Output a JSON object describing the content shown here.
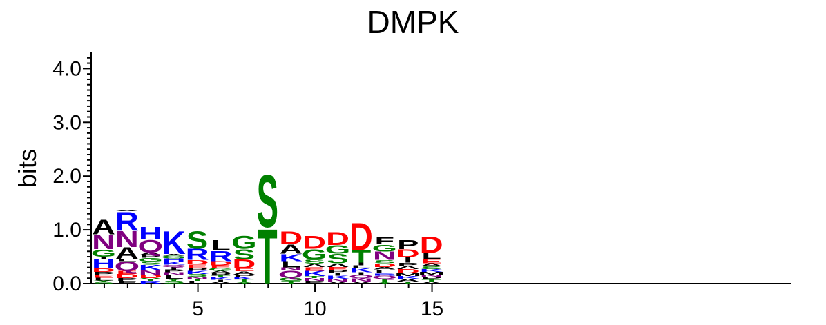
{
  "chart_data": {
    "type": "sequence-logo",
    "title": "DMPK",
    "ylabel": "bits",
    "xlabel": "",
    "ylim": [
      0,
      4.3
    ],
    "y_ticks": [
      "0.0",
      "1.0",
      "2.0",
      "3.0",
      "4.0"
    ],
    "x_ticks": [
      "5",
      "10",
      "15"
    ],
    "positions": [
      1,
      2,
      3,
      4,
      5,
      6,
      7,
      8,
      9,
      10,
      11,
      12,
      13,
      14,
      15
    ],
    "colors": {
      "A": "#000000",
      "C": "#008000",
      "D": "#ff0000",
      "E": "#ff0000",
      "F": "#000000",
      "G": "#008000",
      "H": "#0000ff",
      "I": "#000000",
      "K": "#0000ff",
      "L": "#000000",
      "M": "#000000",
      "N": "#800080",
      "P": "#000000",
      "Q": "#800080",
      "R": "#0000ff",
      "S": "#008000",
      "T": "#008000",
      "V": "#000000",
      "W": "#000000",
      "Y": "#008000"
    },
    "stacks": [
      [
        [
          "S",
          0.03
        ],
        [
          "Y",
          0.03
        ],
        [
          "L",
          0.05
        ],
        [
          "E",
          0.05
        ],
        [
          "P",
          0.06
        ],
        [
          "D",
          0.07
        ],
        [
          "H",
          0.17
        ],
        [
          "I",
          0.04
        ],
        [
          "G",
          0.14
        ],
        [
          "N",
          0.28
        ],
        [
          "A",
          0.28
        ]
      ],
      [
        [
          "F",
          0.05
        ],
        [
          "P",
          0.05
        ],
        [
          "D",
          0.08
        ],
        [
          "E",
          0.06
        ],
        [
          "Q",
          0.18
        ],
        [
          "L",
          0.04
        ],
        [
          "A",
          0.22
        ],
        [
          "N",
          0.31
        ],
        [
          "R",
          0.36
        ],
        [
          "A",
          0.02
        ]
      ],
      [
        [
          "R",
          0.05
        ],
        [
          "Y",
          0.05
        ],
        [
          "D",
          0.07
        ],
        [
          "N",
          0.08
        ],
        [
          "K",
          0.1
        ],
        [
          "S",
          0.06
        ],
        [
          "G",
          0.07
        ],
        [
          "P",
          0.05
        ],
        [
          "A",
          0.05
        ],
        [
          "Q",
          0.24
        ],
        [
          "H",
          0.24
        ]
      ],
      [
        [
          "S",
          0.05
        ],
        [
          "Y",
          0.04
        ],
        [
          "L",
          0.07
        ],
        [
          "N",
          0.05
        ],
        [
          "P",
          0.05
        ],
        [
          "I",
          0.05
        ],
        [
          "Q",
          0.04
        ],
        [
          "K",
          0.06
        ],
        [
          "H",
          0.06
        ],
        [
          "G",
          0.05
        ],
        [
          "A",
          0.03
        ],
        [
          "K",
          0.44
        ]
      ],
      [
        [
          "L",
          0.05
        ],
        [
          "T",
          0.03
        ],
        [
          "N",
          0.05
        ],
        [
          "S",
          0.05
        ],
        [
          "K",
          0.06
        ],
        [
          "P",
          0.05
        ],
        [
          "E",
          0.07
        ],
        [
          "D",
          0.08
        ],
        [
          "R",
          0.21
        ],
        [
          "S",
          0.33
        ]
      ],
      [
        [
          "V",
          0.03
        ],
        [
          "I",
          0.04
        ],
        [
          "K",
          0.05
        ],
        [
          "T",
          0.03
        ],
        [
          "P",
          0.05
        ],
        [
          "A",
          0.04
        ],
        [
          "G",
          0.05
        ],
        [
          "E",
          0.05
        ],
        [
          "D",
          0.08
        ],
        [
          "R",
          0.2
        ],
        [
          "L",
          0.15
        ],
        [
          "L",
          0.04
        ]
      ],
      [
        [
          "Y",
          0.03
        ],
        [
          "T",
          0.05
        ],
        [
          "K",
          0.05
        ],
        [
          "P",
          0.04
        ],
        [
          "A",
          0.06
        ],
        [
          "E",
          0.05
        ],
        [
          "D",
          0.17
        ],
        [
          "S",
          0.2
        ],
        [
          "G",
          0.25
        ]
      ],
      [
        [
          "T",
          1.05
        ],
        [
          "S",
          1.0
        ]
      ],
      [
        [
          "T",
          0.05
        ],
        [
          "G",
          0.06
        ],
        [
          "Q",
          0.14
        ],
        [
          "N",
          0.05
        ],
        [
          "L",
          0.12
        ],
        [
          "K",
          0.14
        ],
        [
          "A",
          0.17
        ],
        [
          "D",
          0.25
        ]
      ],
      [
        [
          "P",
          0.05
        ],
        [
          "N",
          0.05
        ],
        [
          "T",
          0.04
        ],
        [
          "K",
          0.1
        ],
        [
          "E",
          0.07
        ],
        [
          "A",
          0.06
        ],
        [
          "S",
          0.08
        ],
        [
          "G",
          0.2
        ],
        [
          "D",
          0.25
        ]
      ],
      [
        [
          "V",
          0.04
        ],
        [
          "N",
          0.05
        ],
        [
          "K",
          0.06
        ],
        [
          "I",
          0.05
        ],
        [
          "P",
          0.05
        ],
        [
          "E",
          0.06
        ],
        [
          "A",
          0.07
        ],
        [
          "S",
          0.18
        ],
        [
          "G",
          0.16
        ],
        [
          "D",
          0.25
        ]
      ],
      [
        [
          "V",
          0.04
        ],
        [
          "N",
          0.06
        ],
        [
          "Q",
          0.06
        ],
        [
          "I",
          0.05
        ],
        [
          "K",
          0.08
        ],
        [
          "L",
          0.05
        ],
        [
          "I",
          0.05
        ],
        [
          "T",
          0.23
        ],
        [
          "D",
          0.52
        ]
      ],
      [
        [
          "Y",
          0.04
        ],
        [
          "T",
          0.05
        ],
        [
          "Q",
          0.06
        ],
        [
          "R",
          0.04
        ],
        [
          "L",
          0.07
        ],
        [
          "A",
          0.05
        ],
        [
          "D",
          0.07
        ],
        [
          "S",
          0.06
        ],
        [
          "N",
          0.16
        ],
        [
          "G",
          0.13
        ],
        [
          "F",
          0.14
        ]
      ],
      [
        [
          "T",
          0.04
        ],
        [
          "A",
          0.05
        ],
        [
          "K",
          0.05
        ],
        [
          "M",
          0.05
        ],
        [
          "D",
          0.08
        ],
        [
          "A",
          0.06
        ],
        [
          "P",
          0.06
        ],
        [
          "I",
          0.1
        ],
        [
          "D",
          0.15
        ],
        [
          "P",
          0.17
        ]
      ],
      [
        [
          "V",
          0.04
        ],
        [
          "T",
          0.04
        ],
        [
          "P",
          0.05
        ],
        [
          "N",
          0.04
        ],
        [
          "M",
          0.05
        ],
        [
          "K",
          0.05
        ],
        [
          "S",
          0.05
        ],
        [
          "A",
          0.06
        ],
        [
          "E",
          0.08
        ],
        [
          "L",
          0.11
        ],
        [
          "D",
          0.32
        ]
      ]
    ]
  }
}
